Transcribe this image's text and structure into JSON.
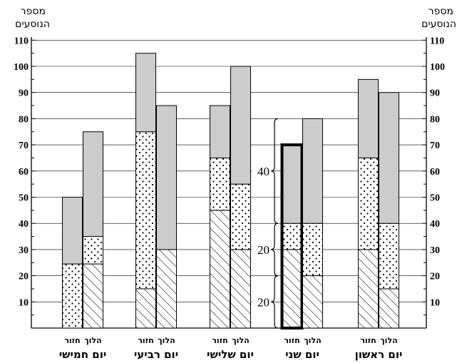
{
  "chart_data": {
    "type": "bar",
    "stacked": true,
    "y_axis_title": [
      "מספר",
      "הנוסעים"
    ],
    "ylim": [
      0,
      110
    ],
    "y_ticks": [
      10,
      20,
      30,
      40,
      50,
      60,
      70,
      80,
      90,
      100,
      110
    ],
    "grid": "horizontal",
    "segment_patterns": [
      "hatched",
      "dotted",
      "gray"
    ],
    "colors": {
      "gray": "#cccccc",
      "stroke": "#000000"
    },
    "direction_labels": {
      "outbound": "הלוך",
      "return": "חזור"
    },
    "days": [
      {
        "name": "יום ראשון",
        "outbound": [
          15,
          25,
          50
        ],
        "return": [
          30,
          35,
          30
        ]
      },
      {
        "name": "יום שני",
        "outbound": [
          20,
          20,
          40
        ],
        "return": [
          30,
          10,
          30
        ]
      },
      {
        "name": "יום שלישי",
        "outbound": [
          30,
          25,
          45
        ],
        "return": [
          45,
          20,
          20
        ]
      },
      {
        "name": "יום רביעי",
        "outbound": [
          30,
          0,
          55
        ],
        "return": [
          15,
          60,
          30
        ]
      },
      {
        "name": "יום חמישי",
        "outbound": [
          24.5,
          10.5,
          40
        ],
        "return": [
          0,
          24.5,
          25.5
        ]
      }
    ],
    "highlighted_day": "יום שני",
    "annotations": [
      "40",
      "20",
      "20"
    ]
  }
}
